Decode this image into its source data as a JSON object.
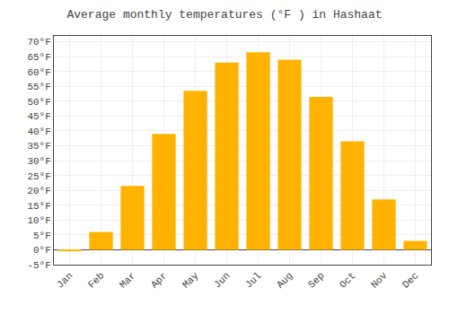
{
  "chart_data": {
    "type": "bar",
    "title": "Average monthly temperatures (°F ) in Hashaat",
    "categories": [
      "Jan",
      "Feb",
      "Mar",
      "Apr",
      "May",
      "Jun",
      "Jul",
      "Aug",
      "Sep",
      "Oct",
      "Nov",
      "Dec"
    ],
    "values": [
      -0.5,
      6,
      21.5,
      39,
      53.5,
      63,
      66.5,
      64,
      51.5,
      36.5,
      17,
      3
    ],
    "color": "#FFB300",
    "ylim": [
      -5,
      72
    ],
    "yticks": [
      {
        "value": -5,
        "label": "-5°F"
      },
      {
        "value": 0,
        "label": "0°F"
      },
      {
        "value": 5,
        "label": "5°F"
      },
      {
        "value": 10,
        "label": "10°F"
      },
      {
        "value": 15,
        "label": "15°F"
      },
      {
        "value": 20,
        "label": "20°F"
      },
      {
        "value": 25,
        "label": "25°F"
      },
      {
        "value": 30,
        "label": "30°F"
      },
      {
        "value": 35,
        "label": "35°F"
      },
      {
        "value": 40,
        "label": "40°F"
      },
      {
        "value": 45,
        "label": "45°F"
      },
      {
        "value": 50,
        "label": "50°F"
      },
      {
        "value": 55,
        "label": "55°F"
      },
      {
        "value": 60,
        "label": "60°F"
      },
      {
        "value": 65,
        "label": "65°F"
      },
      {
        "value": 70,
        "label": "70°F"
      }
    ],
    "grid": true
  }
}
